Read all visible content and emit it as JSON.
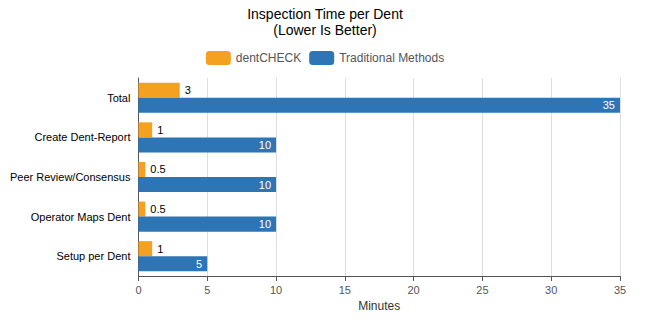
{
  "chart_data": {
    "type": "bar",
    "orientation": "horizontal",
    "title": "Inspection Time per Dent",
    "subtitle": "(Lower Is Better)",
    "categories": [
      "Setup per Dent",
      "Operator Maps Dent",
      "Peer Review/Consensus",
      "Create Dent-Report",
      "Total"
    ],
    "series": [
      {
        "name": "dentCHECK",
        "color": "#F4A020",
        "values": [
          1,
          0.5,
          0.5,
          1,
          3
        ]
      },
      {
        "name": "Traditional Methods",
        "color": "#2E75B6",
        "values": [
          5,
          10,
          10,
          10,
          35
        ]
      }
    ],
    "xlabel": "Minutes",
    "xlim": [
      0,
      35
    ],
    "xticks": [
      0,
      5,
      10,
      15,
      20,
      25,
      30,
      35
    ],
    "grid": true,
    "legend": "top",
    "data_labels": true
  }
}
